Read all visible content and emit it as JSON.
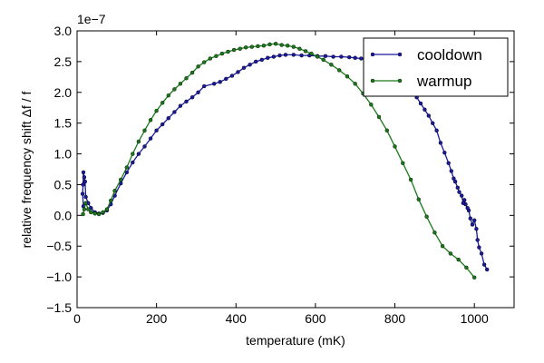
{
  "chart_data": {
    "type": "line",
    "xlabel": "temperature (mK)",
    "ylabel": "relative frequency shift Δf / f",
    "y_multiplier_label": "1e−7",
    "xlim": [
      0,
      1100
    ],
    "ylim": [
      -1.5,
      3.0
    ],
    "x_ticks": [
      "0",
      "200",
      "400",
      "600",
      "800",
      "1000"
    ],
    "x_tick_values": [
      0,
      200,
      400,
      600,
      800,
      1000
    ],
    "y_ticks": [
      "−1.5",
      "−1.0",
      "−0.5",
      "0.0",
      "0.5",
      "1.0",
      "1.5",
      "2.0",
      "2.5",
      "3.0"
    ],
    "y_tick_values": [
      -1.5,
      -1.0,
      -0.5,
      0.0,
      0.5,
      1.0,
      1.5,
      2.0,
      2.5,
      3.0
    ],
    "legend_position": "top-right",
    "grid": false,
    "series": [
      {
        "name": "cooldown",
        "color": "#1a1a9e",
        "points": [
          [
            1032,
            -0.88
          ],
          [
            1025,
            -0.8
          ],
          [
            1018,
            -0.62
          ],
          [
            1012,
            -0.52
          ],
          [
            1008,
            -0.4
          ],
          [
            1005,
            -0.22
          ],
          [
            1000,
            -0.08
          ],
          [
            995,
            -0.15
          ],
          [
            990,
            -0.05
          ],
          [
            986,
            0.08
          ],
          [
            983,
            0.12
          ],
          [
            978,
            0.18
          ],
          [
            975,
            0.25
          ],
          [
            972,
            0.2
          ],
          [
            968,
            0.32
          ],
          [
            962,
            0.38
          ],
          [
            958,
            0.45
          ],
          [
            952,
            0.55
          ],
          [
            948,
            0.6
          ],
          [
            942,
            0.72
          ],
          [
            935,
            0.85
          ],
          [
            925,
            1.02
          ],
          [
            915,
            1.18
          ],
          [
            905,
            1.38
          ],
          [
            895,
            1.5
          ],
          [
            885,
            1.62
          ],
          [
            875,
            1.72
          ],
          [
            865,
            1.82
          ],
          [
            855,
            1.92
          ],
          [
            845,
            2.0
          ],
          [
            835,
            2.08
          ],
          [
            825,
            2.16
          ],
          [
            810,
            2.22
          ],
          [
            800,
            2.28
          ],
          [
            790,
            2.35
          ],
          [
            780,
            2.4
          ],
          [
            770,
            2.44
          ],
          [
            760,
            2.48
          ],
          [
            745,
            2.51
          ],
          [
            730,
            2.53
          ],
          [
            715,
            2.55
          ],
          [
            700,
            2.56
          ],
          [
            685,
            2.57
          ],
          [
            665,
            2.58
          ],
          [
            645,
            2.58
          ],
          [
            625,
            2.59
          ],
          [
            605,
            2.59
          ],
          [
            585,
            2.6
          ],
          [
            565,
            2.6
          ],
          [
            545,
            2.61
          ],
          [
            525,
            2.61
          ],
          [
            510,
            2.6
          ],
          [
            495,
            2.58
          ],
          [
            480,
            2.56
          ],
          [
            465,
            2.53
          ],
          [
            450,
            2.5
          ],
          [
            435,
            2.45
          ],
          [
            420,
            2.4
          ],
          [
            405,
            2.33
          ],
          [
            390,
            2.27
          ],
          [
            375,
            2.22
          ],
          [
            360,
            2.17
          ],
          [
            345,
            2.14
          ],
          [
            320,
            2.1
          ],
          [
            305,
            2.0
          ],
          [
            290,
            1.92
          ],
          [
            275,
            1.85
          ],
          [
            260,
            1.78
          ],
          [
            245,
            1.68
          ],
          [
            230,
            1.58
          ],
          [
            215,
            1.48
          ],
          [
            200,
            1.38
          ],
          [
            185,
            1.25
          ],
          [
            170,
            1.12
          ],
          [
            155,
            1.0
          ],
          [
            140,
            0.86
          ],
          [
            125,
            0.7
          ],
          [
            110,
            0.52
          ],
          [
            95,
            0.32
          ],
          [
            85,
            0.18
          ],
          [
            75,
            0.08
          ],
          [
            65,
            0.04
          ],
          [
            55,
            0.03
          ],
          [
            45,
            0.05
          ],
          [
            35,
            0.12
          ],
          [
            28,
            0.2
          ],
          [
            22,
            0.3
          ],
          [
            20,
            0.55
          ],
          [
            18,
            0.62
          ],
          [
            16,
            0.7
          ],
          [
            15,
            0.5
          ],
          [
            14,
            0.35
          ],
          [
            16,
            0.15
          ]
        ]
      },
      {
        "name": "warmup",
        "color": "#1a7a1a",
        "points": [
          [
            15,
            0.02
          ],
          [
            18,
            0.1
          ],
          [
            22,
            0.2
          ],
          [
            28,
            0.1
          ],
          [
            35,
            0.05
          ],
          [
            45,
            0.03
          ],
          [
            55,
            0.02
          ],
          [
            65,
            0.05
          ],
          [
            75,
            0.1
          ],
          [
            85,
            0.24
          ],
          [
            95,
            0.4
          ],
          [
            110,
            0.58
          ],
          [
            125,
            0.78
          ],
          [
            140,
            1.0
          ],
          [
            155,
            1.2
          ],
          [
            170,
            1.38
          ],
          [
            185,
            1.55
          ],
          [
            200,
            1.7
          ],
          [
            215,
            1.83
          ],
          [
            230,
            1.95
          ],
          [
            245,
            2.05
          ],
          [
            260,
            2.14
          ],
          [
            275,
            2.23
          ],
          [
            290,
            2.32
          ],
          [
            305,
            2.42
          ],
          [
            320,
            2.49
          ],
          [
            335,
            2.55
          ],
          [
            350,
            2.59
          ],
          [
            365,
            2.63
          ],
          [
            380,
            2.66
          ],
          [
            395,
            2.69
          ],
          [
            410,
            2.71
          ],
          [
            425,
            2.73
          ],
          [
            440,
            2.74
          ],
          [
            455,
            2.75
          ],
          [
            470,
            2.76
          ],
          [
            485,
            2.78
          ],
          [
            500,
            2.79
          ],
          [
            515,
            2.77
          ],
          [
            530,
            2.76
          ],
          [
            545,
            2.74
          ],
          [
            560,
            2.71
          ],
          [
            575,
            2.67
          ],
          [
            590,
            2.63
          ],
          [
            605,
            2.58
          ],
          [
            620,
            2.53
          ],
          [
            640,
            2.45
          ],
          [
            660,
            2.36
          ],
          [
            680,
            2.26
          ],
          [
            700,
            2.14
          ],
          [
            720,
            1.98
          ],
          [
            740,
            1.8
          ],
          [
            760,
            1.6
          ],
          [
            780,
            1.38
          ],
          [
            800,
            1.12
          ],
          [
            820,
            0.85
          ],
          [
            840,
            0.58
          ],
          [
            860,
            0.26
          ],
          [
            880,
            -0.02
          ],
          [
            900,
            -0.28
          ],
          [
            920,
            -0.5
          ],
          [
            940,
            -0.62
          ],
          [
            960,
            -0.72
          ],
          [
            980,
            -0.85
          ],
          [
            1000,
            -1.01
          ]
        ]
      }
    ]
  }
}
